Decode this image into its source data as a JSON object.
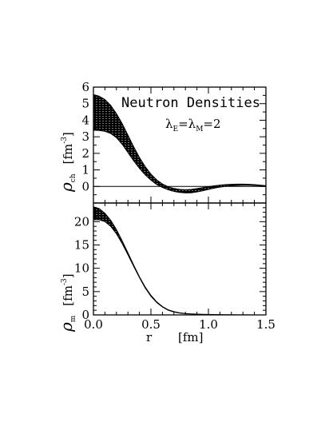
{
  "chart_data": [
    {
      "type": "area",
      "panel": "top",
      "annotation": "Neutron Densities",
      "sublabel": {
        "lam1": "λ",
        "sub1": "E",
        "eq1": "=",
        "lam2": "λ",
        "sub2": "M",
        "eq2": "=2"
      },
      "ylabel": {
        "symbol": "ρ",
        "subscript": "ch",
        "unit_open": "[fm",
        "unit_exp": "-3",
        "unit_close": "]"
      },
      "xlim": [
        0,
        1.5
      ],
      "ylim": [
        -1,
        6
      ],
      "yticks": [
        0,
        1,
        2,
        3,
        4,
        5,
        6
      ],
      "ytick_labels": [
        "0",
        "1",
        "2",
        "3",
        "4",
        "5",
        "6"
      ],
      "zero_line": true,
      "band": {
        "x": [
          0.0,
          0.05,
          0.1,
          0.15,
          0.2,
          0.25,
          0.3,
          0.35,
          0.4,
          0.45,
          0.5,
          0.55,
          0.6,
          0.65,
          0.7,
          0.75,
          0.8,
          0.85,
          0.9,
          0.95,
          1.0,
          1.05,
          1.1,
          1.15,
          1.2,
          1.25,
          1.3,
          1.35,
          1.4,
          1.45,
          1.5
        ],
        "upper": [
          5.55,
          5.45,
          5.25,
          4.9,
          4.4,
          3.8,
          3.1,
          2.4,
          1.75,
          1.2,
          0.75,
          0.4,
          0.15,
          -0.02,
          -0.12,
          -0.18,
          -0.2,
          -0.18,
          -0.13,
          -0.07,
          -0.01,
          0.04,
          0.08,
          0.11,
          0.13,
          0.14,
          0.14,
          0.13,
          0.11,
          0.08,
          0.05
        ],
        "lower": [
          3.4,
          3.38,
          3.33,
          3.2,
          2.95,
          2.55,
          2.05,
          1.55,
          1.1,
          0.7,
          0.38,
          0.12,
          -0.06,
          -0.2,
          -0.3,
          -0.36,
          -0.39,
          -0.38,
          -0.33,
          -0.26,
          -0.18,
          -0.1,
          -0.04,
          0.01,
          0.04,
          0.06,
          0.07,
          0.07,
          0.06,
          0.04,
          0.02
        ]
      }
    },
    {
      "type": "area",
      "panel": "bottom",
      "ylabel": {
        "symbol": "ρ",
        "subscript": "m",
        "unit_open": "[fm",
        "unit_exp": "-3",
        "unit_close": "]"
      },
      "xlabel": {
        "var": "r",
        "unit": "[fm]"
      },
      "xlim": [
        0,
        1.5
      ],
      "ylim": [
        0,
        24
      ],
      "xticks": [
        0,
        0.5,
        1.0,
        1.5
      ],
      "xtick_labels": [
        "0.0",
        "0.5",
        "1.0",
        "1.5"
      ],
      "yticks": [
        0,
        5,
        10,
        15,
        20
      ],
      "ytick_labels": [
        "0",
        "5",
        "10",
        "15",
        "20"
      ],
      "band": {
        "x": [
          0.0,
          0.05,
          0.1,
          0.15,
          0.2,
          0.25,
          0.3,
          0.35,
          0.4,
          0.45,
          0.5,
          0.55,
          0.6,
          0.65,
          0.7,
          0.75,
          0.8,
          0.85,
          0.9,
          0.95,
          1.0,
          1.05,
          1.1,
          1.15,
          1.2,
          1.25,
          1.3,
          1.35,
          1.4,
          1.45,
          1.5
        ],
        "upper": [
          23.2,
          22.8,
          21.8,
          20.3,
          18.3,
          15.9,
          13.3,
          10.7,
          8.2,
          6.0,
          4.2,
          2.8,
          1.8,
          1.1,
          0.7,
          0.45,
          0.3,
          0.22,
          0.17,
          0.13,
          0.1,
          0.08,
          0.06,
          0.04,
          0.03,
          0.02,
          0.015,
          0.01,
          0.005,
          0.0,
          0.0
        ],
        "lower": [
          20.4,
          20.4,
          20.0,
          19.0,
          17.4,
          15.3,
          12.9,
          10.4,
          8.0,
          5.8,
          4.0,
          2.65,
          1.7,
          1.0,
          0.62,
          0.4,
          0.26,
          0.18,
          0.13,
          0.1,
          0.07,
          0.05,
          0.04,
          0.03,
          0.02,
          0.01,
          0.0,
          0.0,
          0.0,
          0.0,
          0.0
        ]
      }
    }
  ]
}
